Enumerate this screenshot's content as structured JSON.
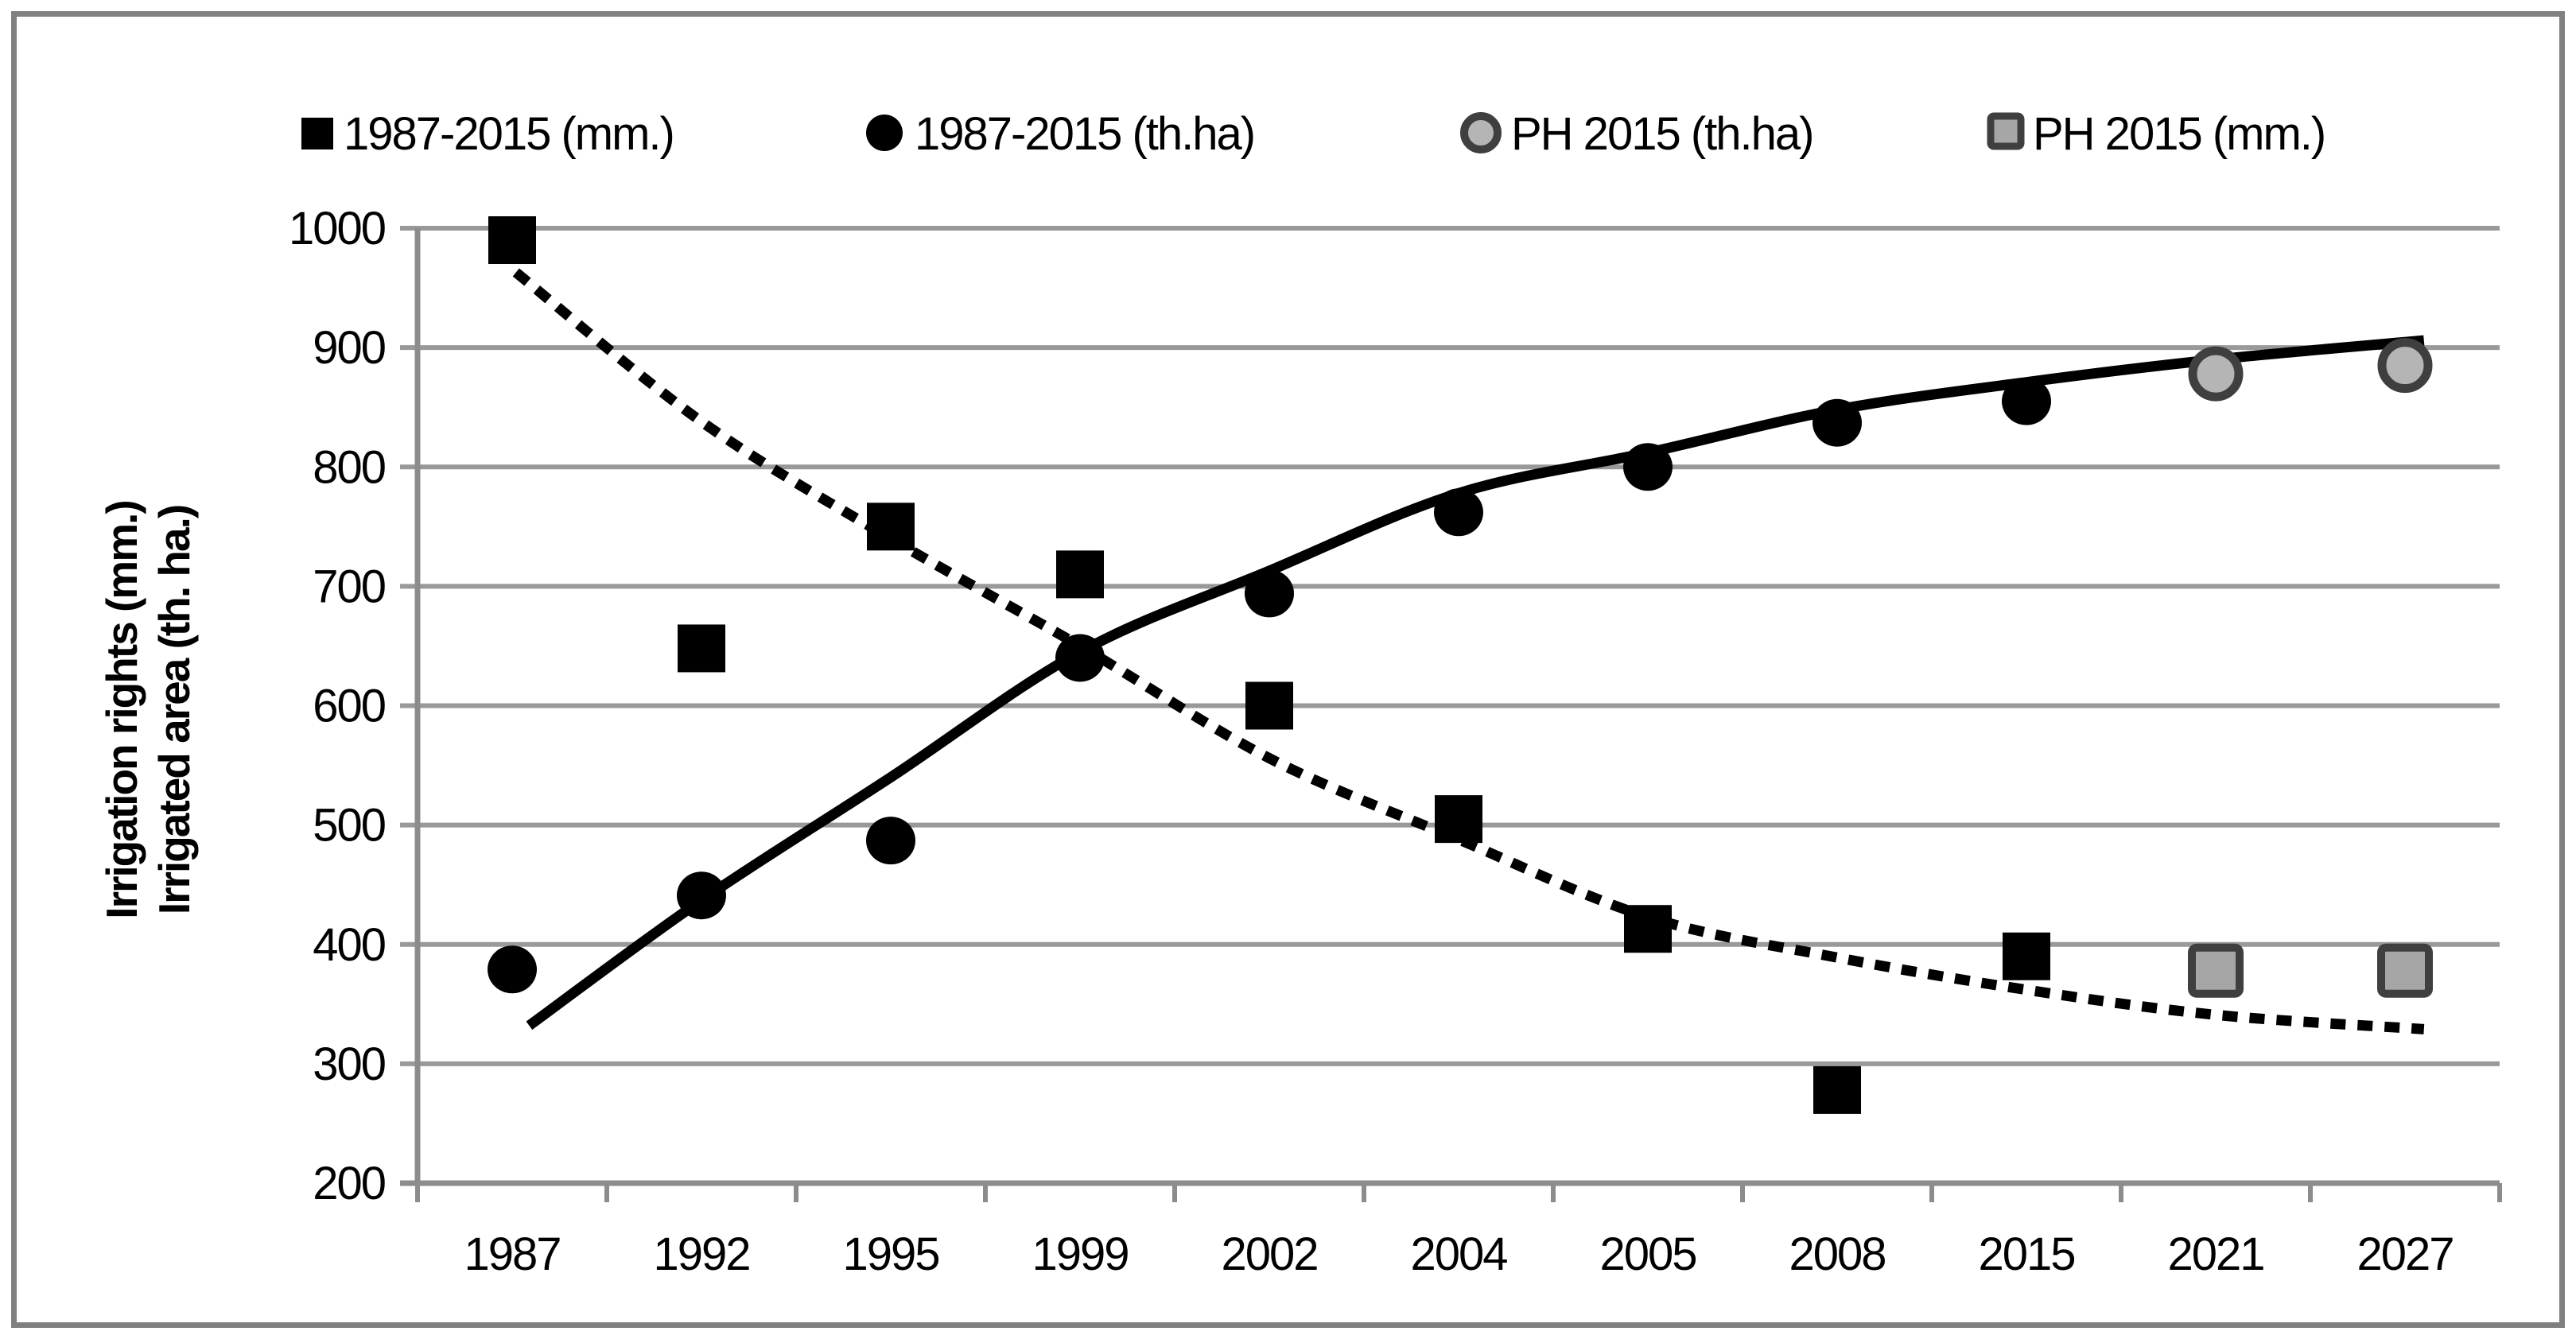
{
  "legend": {
    "items": [
      {
        "label": "1987-2015 (mm.)",
        "marker": "black-square"
      },
      {
        "label": "1987-2015 (th.ha)",
        "marker": "black-circle"
      },
      {
        "label": "PH 2015 (th.ha)",
        "marker": "gray-circle"
      },
      {
        "label": "PH 2015 (mm.)",
        "marker": "gray-square"
      }
    ]
  },
  "y_axis": {
    "title_line1": "Irrigation rights (mm.)",
    "title_line2": "Irrigated area (th. ha.)"
  },
  "colors": {
    "grid": "#999999",
    "axis": "#8c8c8c",
    "frame": "#808080",
    "black": "#000000",
    "gray_fill_circle": "#b5b5b5",
    "gray_fill_square": "#a6a6a6",
    "gray_stroke": "#3f3f3f"
  },
  "chart_data": {
    "type": "scatter",
    "title": "",
    "xlabel": "",
    "ylabel": "Irrigation rights (mm.) / Irrigated area (th. ha.)",
    "categories": [
      "1987",
      "1992",
      "1995",
      "1999",
      "2002",
      "2004",
      "2005",
      "2008",
      "2015",
      "2021",
      "2027"
    ],
    "ylim": [
      200,
      1000
    ],
    "ytick_step": 100,
    "grid": true,
    "legend_position": "top",
    "series": [
      {
        "name": "1987-2015 (mm.)",
        "marker": "square",
        "style": "black-square",
        "fill": "#000000",
        "stroke": "none",
        "values": [
          990,
          648,
          750,
          710,
          600,
          505,
          413,
          278,
          390,
          null,
          null
        ]
      },
      {
        "name": "1987-2015 (th.ha)",
        "marker": "circle",
        "style": "black-circle",
        "fill": "#000000",
        "stroke": "none",
        "values": [
          379,
          441,
          487,
          640,
          694,
          762,
          800,
          837,
          855,
          null,
          null
        ]
      },
      {
        "name": "PH 2015 (th.ha)",
        "marker": "circle",
        "style": "gray-circle",
        "fill": "#b5b5b5",
        "stroke": "#3f3f3f",
        "values": [
          null,
          null,
          null,
          null,
          null,
          null,
          null,
          null,
          null,
          878,
          885
        ]
      },
      {
        "name": "PH 2015 (mm.)",
        "marker": "square",
        "style": "gray-square",
        "fill": "#a6a6a6",
        "stroke": "#3f3f3f",
        "values": [
          null,
          null,
          null,
          null,
          null,
          null,
          null,
          null,
          null,
          378,
          378
        ]
      }
    ],
    "trendlines": [
      {
        "for": "1987-2015 (th.ha)",
        "style": "solid",
        "points": [
          [
            0.09,
            332
          ],
          [
            1,
            437
          ],
          [
            2,
            540
          ],
          [
            3,
            645
          ],
          [
            4,
            713
          ],
          [
            5,
            778
          ],
          [
            6,
            812
          ],
          [
            7,
            848
          ],
          [
            8,
            871
          ],
          [
            9,
            890
          ],
          [
            10.1,
            906
          ]
        ]
      },
      {
        "for": "1987-2015 (mm.)",
        "style": "dotted",
        "points": [
          [
            0.02,
            963
          ],
          [
            1,
            838
          ],
          [
            2,
            740
          ],
          [
            3,
            650
          ],
          [
            4,
            556
          ],
          [
            5,
            488
          ],
          [
            6,
            423
          ],
          [
            7,
            389
          ],
          [
            8,
            362
          ],
          [
            9,
            341
          ],
          [
            10.1,
            329
          ]
        ]
      }
    ]
  }
}
